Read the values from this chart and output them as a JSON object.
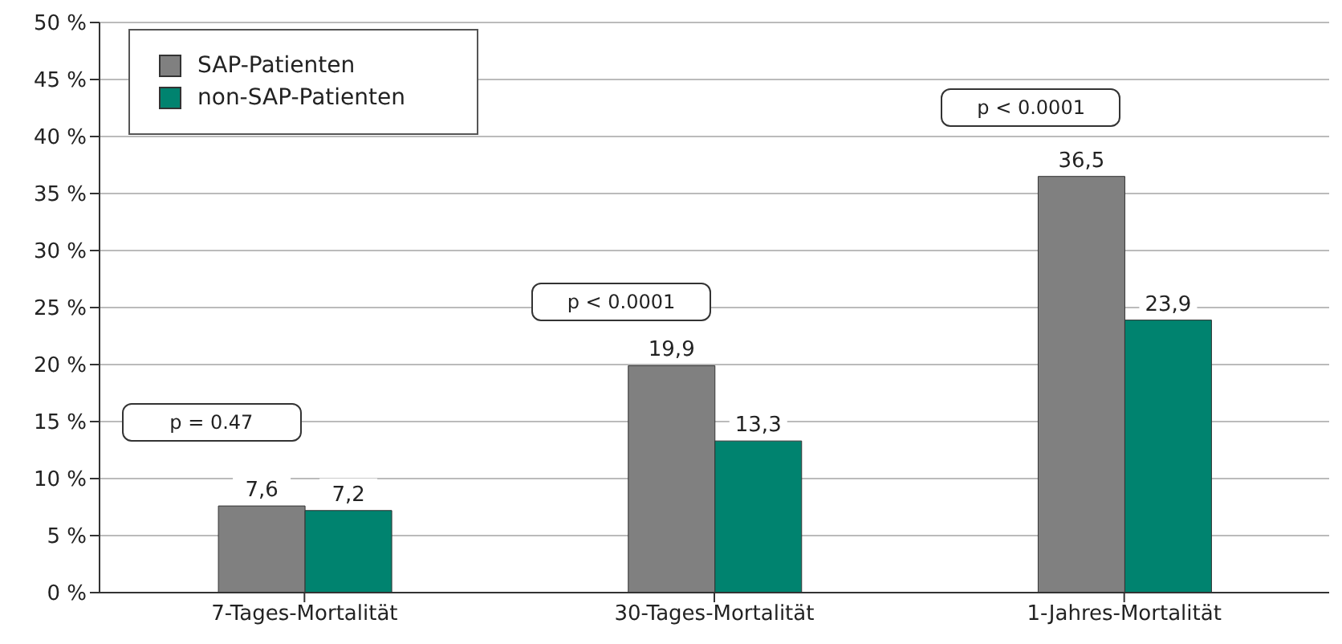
{
  "chart_data": {
    "type": "bar",
    "categories": [
      "7-Tages-Mortalität",
      "30-Tages-Mortalität",
      "1-Jahres-Mortalität"
    ],
    "series": [
      {
        "name": "SAP-Patienten",
        "color": "#808080",
        "values": [
          7.6,
          19.9,
          36.5
        ],
        "value_labels": [
          "7,6",
          "19,9",
          "36,5"
        ]
      },
      {
        "name": "non-SAP-Patienten",
        "color": "#00836f",
        "values": [
          7.2,
          13.3,
          23.9
        ],
        "value_labels": [
          "7,2",
          "13,3",
          "23,9"
        ]
      }
    ],
    "ylim": [
      0,
      50
    ],
    "yticks": [
      {
        "value": 0,
        "label": "0 %"
      },
      {
        "value": 5,
        "label": "5 %"
      },
      {
        "value": 10,
        "label": "10 %"
      },
      {
        "value": 15,
        "label": "15 %"
      },
      {
        "value": 20,
        "label": "20 %"
      },
      {
        "value": 25,
        "label": "25 %"
      },
      {
        "value": 30,
        "label": "30 %"
      },
      {
        "value": 35,
        "label": "35 %"
      },
      {
        "value": 40,
        "label": "40 %"
      },
      {
        "value": 45,
        "label": "45 %"
      },
      {
        "value": 50,
        "label": "50 %"
      }
    ],
    "grid": "y",
    "legend": "top left",
    "annotations": [
      "p = 0.47",
      "p < 0.0001",
      "p < 0.0001"
    ]
  }
}
